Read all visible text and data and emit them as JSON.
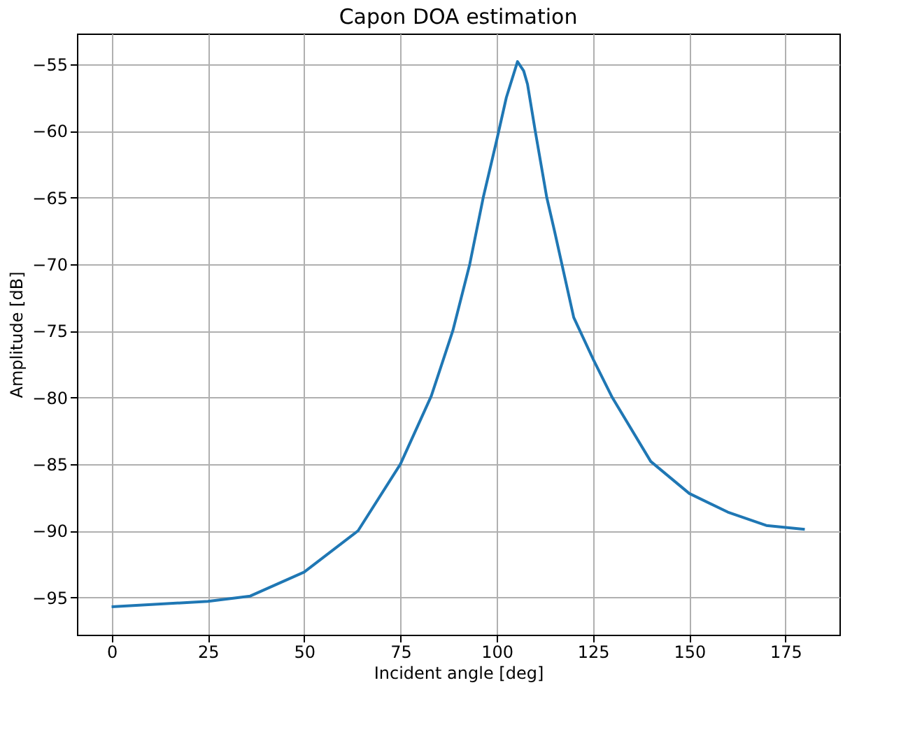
{
  "chart_data": {
    "type": "line",
    "title": "Capon DOA estimation",
    "xlabel": "Incident angle [deg]",
    "ylabel": "Amplitude [dB]",
    "x": [
      0,
      25,
      36,
      50,
      64,
      75,
      83,
      88.6,
      93,
      96.5,
      100,
      102.5,
      105.4,
      107,
      108,
      110,
      113,
      115,
      120,
      125,
      130,
      140,
      150,
      160,
      170,
      180
    ],
    "series": [
      {
        "color": "#1f77b4",
        "values": [
          -95.7,
          -95.3,
          -94.9,
          -93.1,
          -90,
          -85,
          -79.9,
          -75,
          -70,
          -65,
          -60.7,
          -57.5,
          -54.8,
          -55.5,
          -56.5,
          -60,
          -65,
          -67.5,
          -74,
          -77.1,
          -80,
          -84.8,
          -87.2,
          -88.6,
          -89.6,
          -89.9
        ]
      }
    ],
    "xlim": [
      -9,
      189
    ],
    "xticks": [
      0,
      25,
      50,
      75,
      100,
      125,
      150,
      175
    ],
    "ylim": [
      -97.8,
      -52.7
    ],
    "yticks": [
      -95,
      -90,
      -85,
      -80,
      -75,
      -70,
      -65,
      -60,
      -55
    ],
    "grid": true,
    "marker": "none",
    "line_style": "solid",
    "legend": false
  }
}
